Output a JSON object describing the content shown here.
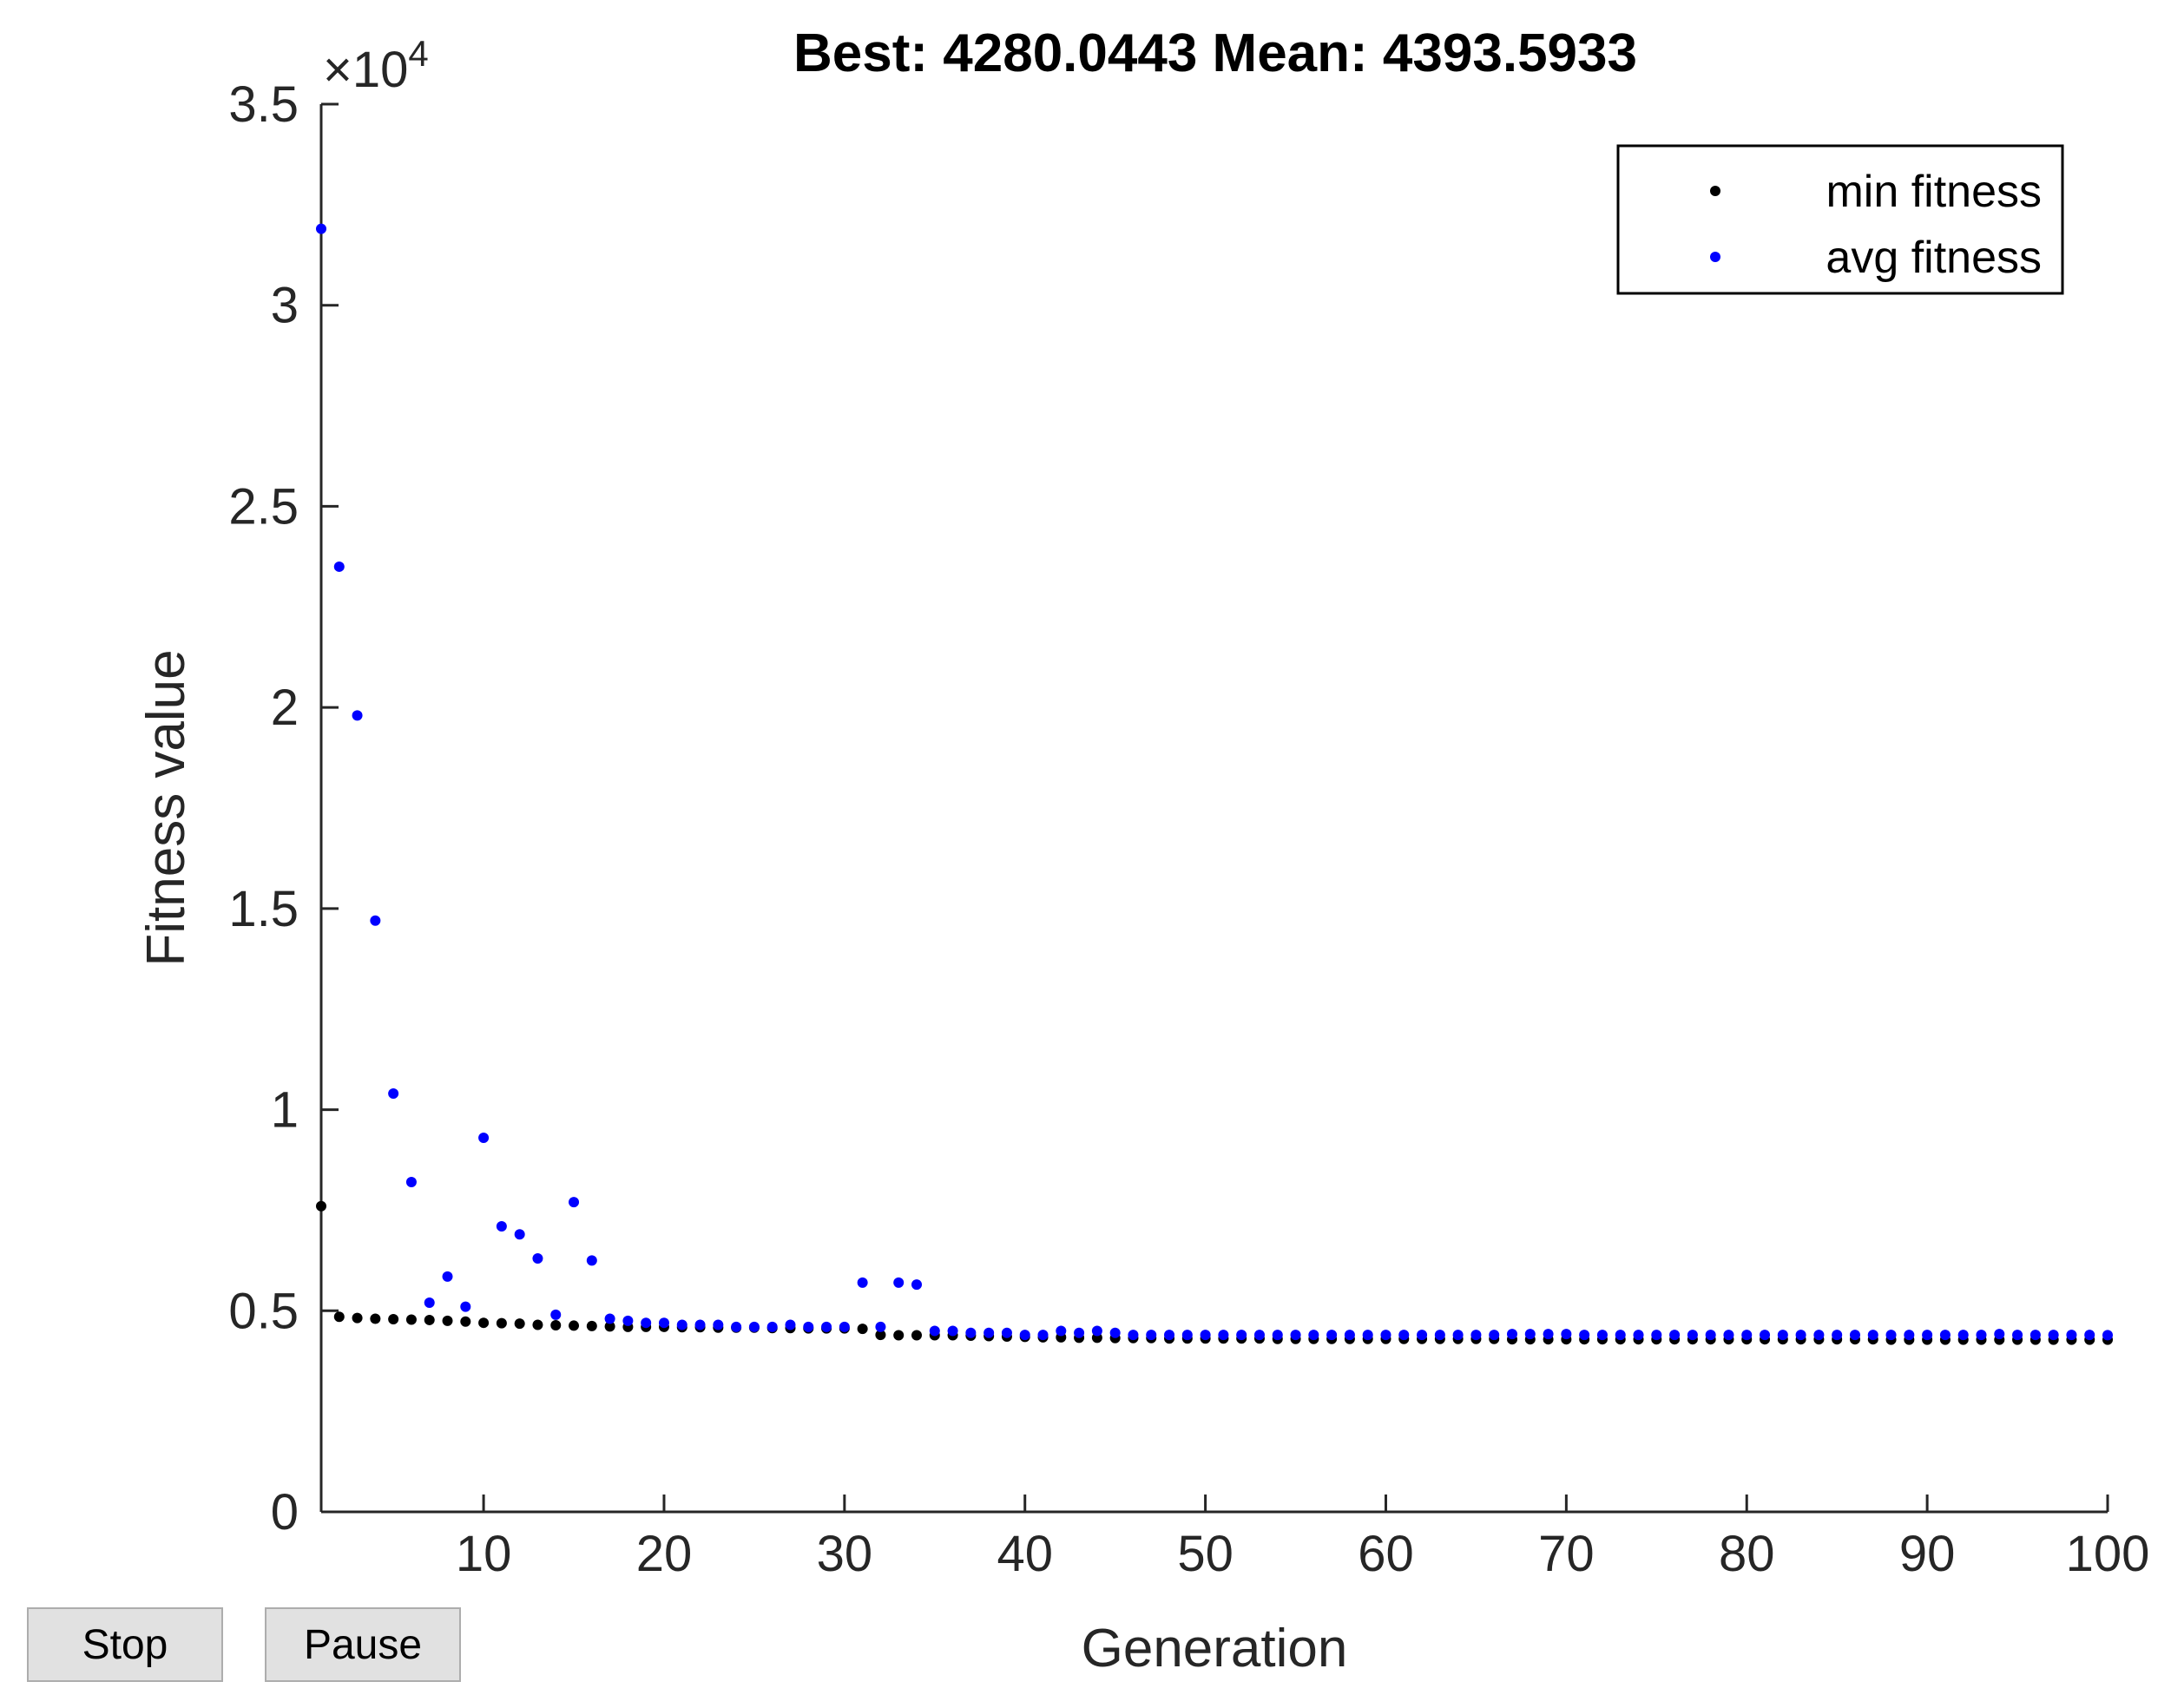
{
  "buttons": {
    "stop_label": "Stop",
    "pause_label": "Pause"
  },
  "chart_data": {
    "type": "scatter",
    "title": "Best: 4280.0443 Mean: 4393.5933",
    "xlabel": "Generation",
    "ylabel": "Fitness value",
    "y_exponent_label": "×10",
    "y_exponent_power": "4",
    "xlim": [
      1,
      100
    ],
    "ylim": [
      0,
      35000
    ],
    "xticks": [
      10,
      20,
      30,
      40,
      50,
      60,
      70,
      80,
      90,
      100
    ],
    "xtick_labels": [
      "10",
      "20",
      "30",
      "40",
      "50",
      "60",
      "70",
      "80",
      "90",
      "100"
    ],
    "yticks": [
      0,
      5000,
      10000,
      15000,
      20000,
      25000,
      30000,
      35000
    ],
    "ytick_labels": [
      "0",
      "0.5",
      "1",
      "1.5",
      "2",
      "2.5",
      "3",
      "3.5"
    ],
    "grid": false,
    "legend_position": "top-right",
    "series": [
      {
        "name": "min fitness",
        "color": "#000000",
        "x": [
          1,
          2,
          3,
          4,
          5,
          6,
          7,
          8,
          9,
          10,
          11,
          12,
          13,
          14,
          15,
          16,
          17,
          18,
          19,
          20,
          21,
          22,
          23,
          24,
          25,
          26,
          27,
          28,
          29,
          30,
          31,
          32,
          33,
          34,
          35,
          36,
          37,
          38,
          39,
          40,
          41,
          42,
          43,
          44,
          45,
          46,
          47,
          48,
          49,
          50,
          51,
          52,
          53,
          54,
          55,
          56,
          57,
          58,
          59,
          60,
          61,
          62,
          63,
          64,
          65,
          66,
          67,
          68,
          69,
          70,
          71,
          72,
          73,
          74,
          75,
          76,
          77,
          78,
          79,
          80,
          81,
          82,
          83,
          84,
          85,
          86,
          87,
          88,
          89,
          90,
          91,
          92,
          93,
          94,
          95,
          96,
          97,
          98,
          99,
          100
        ],
        "y": [
          7600,
          4850,
          4820,
          4800,
          4790,
          4780,
          4770,
          4750,
          4730,
          4700,
          4690,
          4680,
          4650,
          4640,
          4630,
          4620,
          4610,
          4600,
          4600,
          4600,
          4590,
          4590,
          4580,
          4580,
          4580,
          4570,
          4570,
          4560,
          4560,
          4560,
          4550,
          4400,
          4390,
          4390,
          4390,
          4390,
          4380,
          4370,
          4360,
          4350,
          4340,
          4340,
          4330,
          4330,
          4320,
          4320,
          4320,
          4310,
          4310,
          4310,
          4310,
          4310,
          4310,
          4300,
          4300,
          4300,
          4300,
          4300,
          4300,
          4300,
          4300,
          4300,
          4300,
          4300,
          4300,
          4300,
          4290,
          4290,
          4290,
          4290,
          4290,
          4290,
          4290,
          4290,
          4290,
          4290,
          4290,
          4290,
          4290,
          4290,
          4290,
          4290,
          4290,
          4290,
          4290,
          4290,
          4290,
          4280,
          4280,
          4280,
          4280,
          4280,
          4280,
          4280,
          4280,
          4280,
          4280,
          4280,
          4280,
          4280
        ]
      },
      {
        "name": "avg fitness",
        "color": "#0000ff",
        "x": [
          1,
          2,
          3,
          4,
          5,
          6,
          7,
          8,
          9,
          10,
          11,
          12,
          13,
          14,
          15,
          16,
          17,
          18,
          19,
          20,
          21,
          22,
          23,
          24,
          25,
          26,
          27,
          28,
          29,
          30,
          31,
          32,
          33,
          34,
          35,
          36,
          37,
          38,
          39,
          40,
          41,
          42,
          43,
          44,
          45,
          46,
          47,
          48,
          49,
          50,
          51,
          52,
          53,
          54,
          55,
          56,
          57,
          58,
          59,
          60,
          61,
          62,
          63,
          64,
          65,
          66,
          67,
          68,
          69,
          70,
          71,
          72,
          73,
          74,
          75,
          76,
          77,
          78,
          79,
          80,
          81,
          82,
          83,
          84,
          85,
          86,
          87,
          88,
          89,
          90,
          91,
          92,
          93,
          94,
          95,
          96,
          97,
          98,
          99,
          100
        ],
        "y": [
          31900,
          23500,
          19800,
          14700,
          10400,
          8200,
          5200,
          5850,
          5100,
          9300,
          7100,
          6900,
          6300,
          4900,
          7700,
          6250,
          4800,
          4750,
          4700,
          4700,
          4650,
          4650,
          4650,
          4600,
          4600,
          4600,
          4650,
          4600,
          4600,
          4600,
          5700,
          4600,
          5700,
          5650,
          4500,
          4500,
          4450,
          4450,
          4450,
          4400,
          4400,
          4500,
          4450,
          4500,
          4450,
          4400,
          4400,
          4400,
          4400,
          4400,
          4400,
          4400,
          4400,
          4400,
          4400,
          4400,
          4400,
          4400,
          4400,
          4400,
          4400,
          4400,
          4400,
          4400,
          4400,
          4400,
          4420,
          4420,
          4420,
          4420,
          4400,
          4400,
          4400,
          4400,
          4400,
          4400,
          4400,
          4400,
          4400,
          4400,
          4400,
          4400,
          4400,
          4400,
          4400,
          4400,
          4400,
          4400,
          4400,
          4400,
          4400,
          4400,
          4400,
          4420,
          4400,
          4400,
          4400,
          4400,
          4400,
          4394
        ]
      }
    ]
  }
}
